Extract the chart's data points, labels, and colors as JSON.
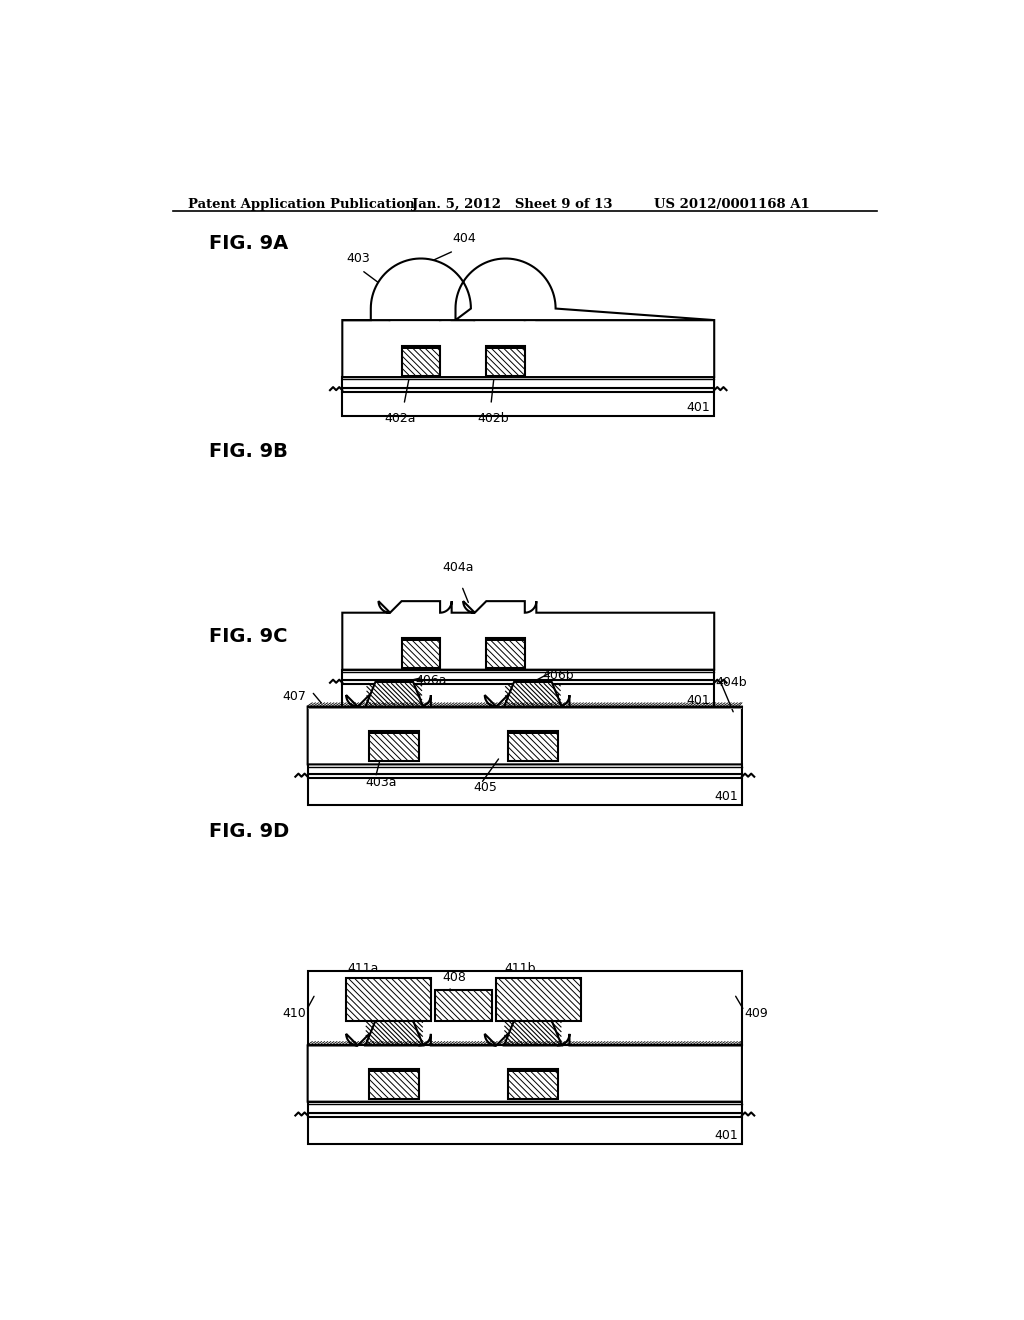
{
  "title_left": "Patent Application Publication",
  "title_mid": "Jan. 5, 2012   Sheet 9 of 13",
  "title_right": "US 2012/0001168 A1",
  "bg_color": "#ffffff",
  "line_color": "#000000"
}
